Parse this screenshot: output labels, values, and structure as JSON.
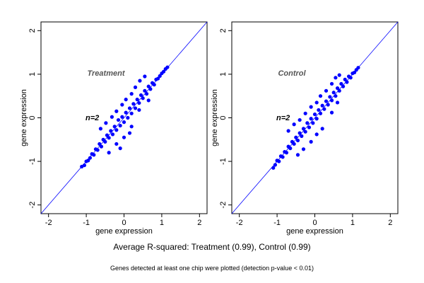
{
  "chart_data": [
    {
      "type": "scatter",
      "title": "Treatment",
      "annotation": "n=2",
      "xlabel": "gene expression",
      "ylabel": "gene expression",
      "xlim": [
        -2.2,
        2.2
      ],
      "ylim": [
        -2.2,
        2.2
      ],
      "xticks": [
        -2,
        -1,
        0,
        1,
        2
      ],
      "yticks": [
        -2,
        -1,
        0,
        1,
        2
      ],
      "reference_line": "y = x",
      "grid": false,
      "point_color": "#0000ff",
      "line_color": "#0000ff",
      "series": [
        {
          "values": [
            {
              "x": -1.12,
              "y": -1.12
            },
            {
              "x": -1.05,
              "y": -1.09
            },
            {
              "x": -1.0,
              "y": -1.0
            },
            {
              "x": -0.95,
              "y": -0.98
            },
            {
              "x": -0.9,
              "y": -0.92
            },
            {
              "x": -0.85,
              "y": -0.83
            },
            {
              "x": -0.8,
              "y": -0.85
            },
            {
              "x": -0.75,
              "y": -0.72
            },
            {
              "x": -0.7,
              "y": -0.74
            },
            {
              "x": -0.65,
              "y": -0.6
            },
            {
              "x": -0.6,
              "y": -0.66
            },
            {
              "x": -0.55,
              "y": -0.5
            },
            {
              "x": -0.5,
              "y": -0.55
            },
            {
              "x": -0.45,
              "y": -0.4
            },
            {
              "x": -0.4,
              "y": -0.46
            },
            {
              "x": -0.35,
              "y": -0.3
            },
            {
              "x": -0.3,
              "y": -0.38
            },
            {
              "x": -0.25,
              "y": -0.2
            },
            {
              "x": -0.2,
              "y": -0.28
            },
            {
              "x": -0.15,
              "y": -0.05
            },
            {
              "x": -0.1,
              "y": -0.18
            },
            {
              "x": -0.05,
              "y": 0.02
            },
            {
              "x": 0.0,
              "y": -0.1
            },
            {
              "x": 0.05,
              "y": 0.12
            },
            {
              "x": 0.1,
              "y": 0.0
            },
            {
              "x": 0.15,
              "y": 0.22
            },
            {
              "x": 0.2,
              "y": 0.1
            },
            {
              "x": 0.25,
              "y": 0.32
            },
            {
              "x": 0.3,
              "y": 0.22
            },
            {
              "x": 0.35,
              "y": 0.42
            },
            {
              "x": 0.4,
              "y": 0.34
            },
            {
              "x": 0.45,
              "y": 0.52
            },
            {
              "x": 0.5,
              "y": 0.45
            },
            {
              "x": 0.55,
              "y": 0.62
            },
            {
              "x": 0.6,
              "y": 0.55
            },
            {
              "x": 0.65,
              "y": 0.72
            },
            {
              "x": 0.7,
              "y": 0.66
            },
            {
              "x": 0.75,
              "y": 0.8
            },
            {
              "x": 0.8,
              "y": 0.76
            },
            {
              "x": 0.85,
              "y": 0.88
            },
            {
              "x": 0.9,
              "y": 0.9
            },
            {
              "x": 0.95,
              "y": 0.96
            },
            {
              "x": 1.0,
              "y": 1.02
            },
            {
              "x": 1.05,
              "y": 1.06
            },
            {
              "x": 1.1,
              "y": 1.12
            },
            {
              "x": 1.15,
              "y": 1.16
            },
            {
              "x": -0.62,
              "y": -0.25
            },
            {
              "x": -0.48,
              "y": -0.12
            },
            {
              "x": -0.32,
              "y": 0.02
            },
            {
              "x": -0.2,
              "y": 0.15
            },
            {
              "x": -0.05,
              "y": 0.3
            },
            {
              "x": 0.05,
              "y": 0.42
            },
            {
              "x": 0.2,
              "y": 0.55
            },
            {
              "x": 0.3,
              "y": 0.7
            },
            {
              "x": 0.42,
              "y": 0.85
            },
            {
              "x": 0.55,
              "y": 0.95
            },
            {
              "x": 0.4,
              "y": 0.18
            },
            {
              "x": 0.2,
              "y": -0.2
            },
            {
              "x": 0.0,
              "y": -0.45
            },
            {
              "x": -0.2,
              "y": -0.6
            },
            {
              "x": -0.4,
              "y": -0.8
            },
            {
              "x": 0.65,
              "y": 0.4
            },
            {
              "x": -0.1,
              "y": -0.7
            },
            {
              "x": 0.15,
              "y": -0.35
            }
          ]
        }
      ]
    },
    {
      "type": "scatter",
      "title": "Control",
      "annotation": "n=2",
      "xlabel": "gene expression",
      "ylabel": "gene expression",
      "xlim": [
        -2.2,
        2.2
      ],
      "ylim": [
        -2.2,
        2.2
      ],
      "xticks": [
        -2,
        -1,
        0,
        1,
        2
      ],
      "yticks": [
        -2,
        -1,
        0,
        1,
        2
      ],
      "reference_line": "y = x",
      "grid": false,
      "point_color": "#0000ff",
      "line_color": "#0000ff",
      "series": [
        {
          "values": [
            {
              "x": -1.1,
              "y": -1.15
            },
            {
              "x": -1.05,
              "y": -1.08
            },
            {
              "x": -1.0,
              "y": -0.98
            },
            {
              "x": -0.95,
              "y": -1.0
            },
            {
              "x": -0.9,
              "y": -0.88
            },
            {
              "x": -0.85,
              "y": -0.9
            },
            {
              "x": -0.8,
              "y": -0.78
            },
            {
              "x": -0.75,
              "y": -0.8
            },
            {
              "x": -0.7,
              "y": -0.66
            },
            {
              "x": -0.65,
              "y": -0.7
            },
            {
              "x": -0.6,
              "y": -0.55
            },
            {
              "x": -0.55,
              "y": -0.6
            },
            {
              "x": -0.5,
              "y": -0.45
            },
            {
              "x": -0.45,
              "y": -0.52
            },
            {
              "x": -0.4,
              "y": -0.35
            },
            {
              "x": -0.35,
              "y": -0.42
            },
            {
              "x": -0.3,
              "y": -0.25
            },
            {
              "x": -0.25,
              "y": -0.32
            },
            {
              "x": -0.2,
              "y": -0.12
            },
            {
              "x": -0.15,
              "y": -0.22
            },
            {
              "x": -0.1,
              "y": -0.02
            },
            {
              "x": -0.05,
              "y": -0.12
            },
            {
              "x": 0.0,
              "y": 0.08
            },
            {
              "x": 0.05,
              "y": -0.02
            },
            {
              "x": 0.1,
              "y": 0.18
            },
            {
              "x": 0.15,
              "y": 0.1
            },
            {
              "x": 0.2,
              "y": 0.28
            },
            {
              "x": 0.25,
              "y": 0.2
            },
            {
              "x": 0.3,
              "y": 0.38
            },
            {
              "x": 0.35,
              "y": 0.3
            },
            {
              "x": 0.4,
              "y": 0.48
            },
            {
              "x": 0.45,
              "y": 0.4
            },
            {
              "x": 0.5,
              "y": 0.58
            },
            {
              "x": 0.55,
              "y": 0.5
            },
            {
              "x": 0.6,
              "y": 0.68
            },
            {
              "x": 0.65,
              "y": 0.62
            },
            {
              "x": 0.7,
              "y": 0.78
            },
            {
              "x": 0.75,
              "y": 0.72
            },
            {
              "x": 0.8,
              "y": 0.88
            },
            {
              "x": 0.85,
              "y": 0.82
            },
            {
              "x": 0.9,
              "y": 0.95
            },
            {
              "x": 0.95,
              "y": 0.92
            },
            {
              "x": 1.0,
              "y": 1.02
            },
            {
              "x": 1.05,
              "y": 1.04
            },
            {
              "x": 1.1,
              "y": 1.1
            },
            {
              "x": 1.15,
              "y": 1.15
            },
            {
              "x": -0.7,
              "y": -0.3
            },
            {
              "x": -0.55,
              "y": -0.15
            },
            {
              "x": -0.4,
              "y": -0.05
            },
            {
              "x": -0.25,
              "y": 0.1
            },
            {
              "x": -0.1,
              "y": 0.25
            },
            {
              "x": 0.05,
              "y": 0.35
            },
            {
              "x": 0.15,
              "y": 0.5
            },
            {
              "x": 0.3,
              "y": 0.62
            },
            {
              "x": 0.45,
              "y": 0.78
            },
            {
              "x": 0.55,
              "y": 0.92
            },
            {
              "x": 0.65,
              "y": 0.98
            },
            {
              "x": 0.2,
              "y": -0.25
            },
            {
              "x": 0.05,
              "y": -0.38
            },
            {
              "x": -0.1,
              "y": -0.55
            },
            {
              "x": -0.3,
              "y": -0.72
            },
            {
              "x": 0.45,
              "y": 0.12
            },
            {
              "x": -0.45,
              "y": -0.85
            },
            {
              "x": 0.6,
              "y": 0.35
            }
          ]
        }
      ]
    }
  ],
  "captions": {
    "main": "Average R-squared: Treatment (0.99), Control (0.99)",
    "sub": "Genes detected at least one chip were plotted (detection p-value < 0.01)"
  }
}
